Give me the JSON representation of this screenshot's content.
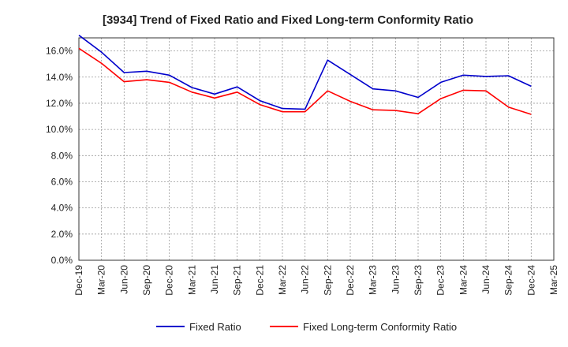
{
  "chart_data": {
    "type": "line",
    "title": "[3934]  Trend of Fixed Ratio and Fixed Long-term Conformity Ratio",
    "xlabel": "",
    "ylabel": "",
    "categories": [
      "Dec-19",
      "Mar-20",
      "Jun-20",
      "Sep-20",
      "Dec-20",
      "Mar-21",
      "Jun-21",
      "Sep-21",
      "Dec-21",
      "Mar-22",
      "Jun-22",
      "Sep-22",
      "Dec-22",
      "Mar-23",
      "Jun-23",
      "Sep-23",
      "Dec-23",
      "Mar-24",
      "Jun-24",
      "Sep-24",
      "Dec-24",
      "Mar-25"
    ],
    "y_ticks": [
      "0.0%",
      "2.0%",
      "4.0%",
      "6.0%",
      "8.0%",
      "10.0%",
      "12.0%",
      "14.0%",
      "16.0%"
    ],
    "ylim": [
      0,
      17
    ],
    "grid": true,
    "legend_position": "bottom",
    "series": [
      {
        "name": "Fixed Ratio",
        "color": "#0000cc",
        "values": [
          17.2,
          15.9,
          14.35,
          14.45,
          14.15,
          13.2,
          12.7,
          13.25,
          12.2,
          11.6,
          11.55,
          15.3,
          14.2,
          13.1,
          12.95,
          12.45,
          13.6,
          14.15,
          14.05,
          14.1,
          13.3,
          null
        ]
      },
      {
        "name": "Fixed Long-term Conformity Ratio",
        "color": "#ff0000",
        "values": [
          16.2,
          15.05,
          13.65,
          13.8,
          13.6,
          12.85,
          12.4,
          12.85,
          11.9,
          11.35,
          11.35,
          12.95,
          12.15,
          11.5,
          11.45,
          11.2,
          12.35,
          13.0,
          12.95,
          11.7,
          11.15,
          null
        ]
      }
    ]
  }
}
